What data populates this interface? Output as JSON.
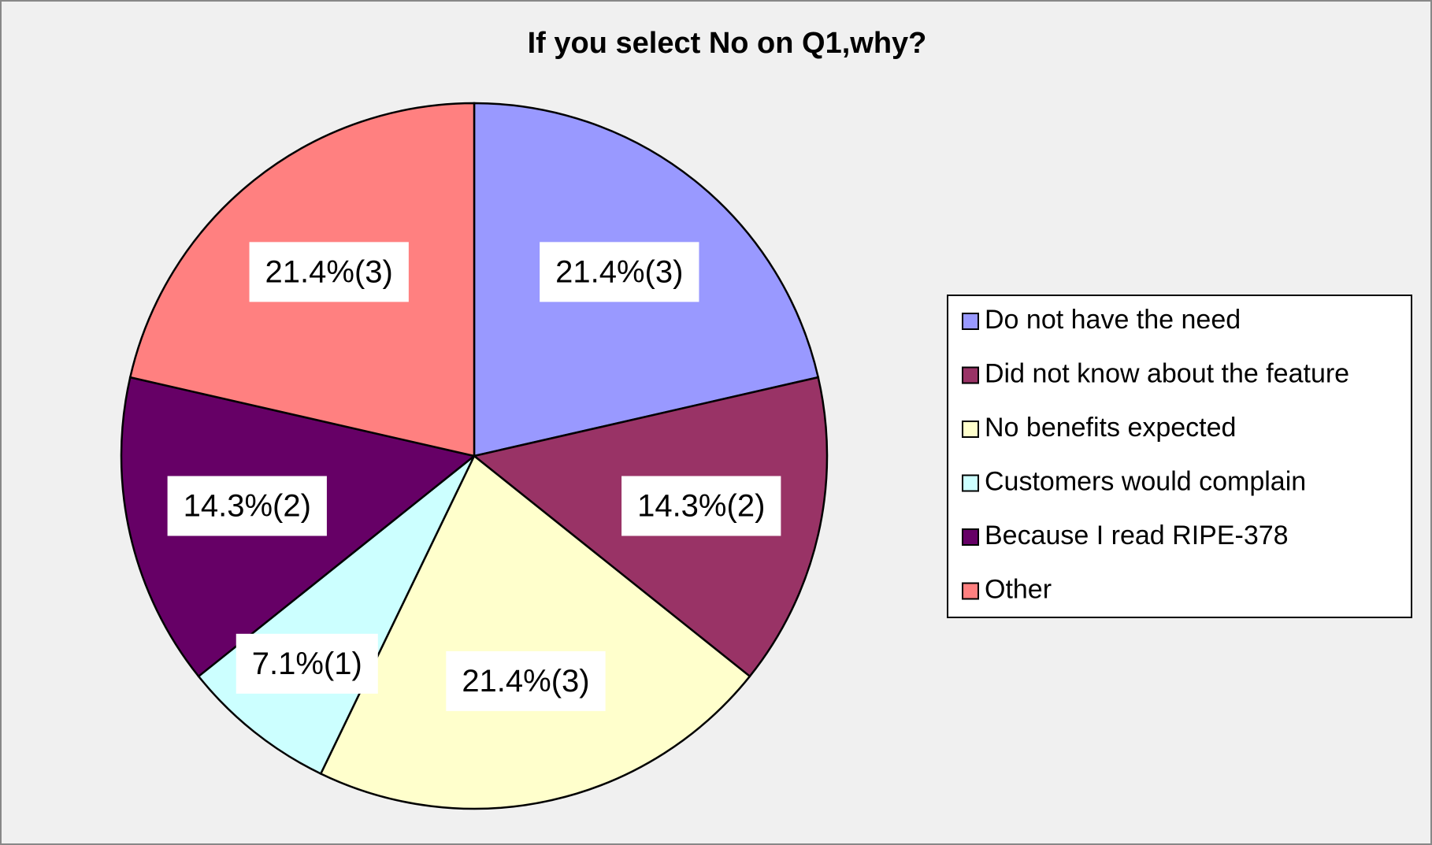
{
  "chart_data": {
    "type": "pie",
    "title": "If you select No on Q1,why?",
    "categories": [
      "Do not have the need",
      "Did not know about the feature",
      "No benefits expected",
      "Customers would complain",
      "Because I read RIPE-378",
      "Other"
    ],
    "values": [
      21.4,
      14.3,
      21.4,
      7.1,
      14.3,
      21.4
    ],
    "value_labels": [
      "21.4%(3)",
      "14.3%(2)",
      "21.4%(3)",
      "7.1%(1)",
      "14.3%(2)",
      "21.4%(3)"
    ],
    "colors": [
      "#9999ff",
      "#993366",
      "#ffffcc",
      "#ccffff",
      "#660066",
      "#ff8080"
    ],
    "legend": "right"
  }
}
